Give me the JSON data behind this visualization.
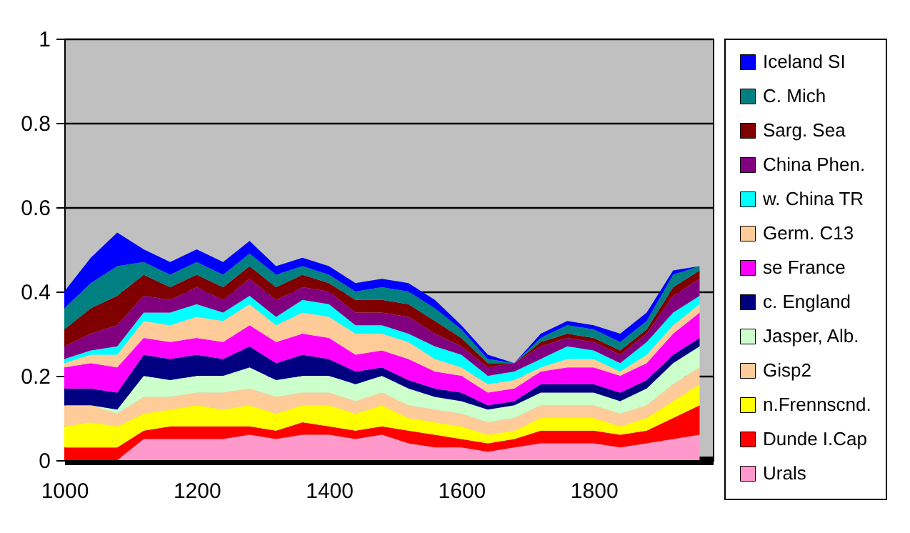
{
  "chart_data": {
    "type": "area",
    "stacked": true,
    "grid": "y",
    "legend": "right",
    "x": [
      1000,
      1040,
      1080,
      1120,
      1160,
      1200,
      1240,
      1280,
      1320,
      1360,
      1400,
      1440,
      1480,
      1520,
      1560,
      1600,
      1640,
      1680,
      1720,
      1760,
      1800,
      1840,
      1880,
      1920,
      1960
    ],
    "xlim": [
      1000,
      1980
    ],
    "xticks": [
      1000,
      1200,
      1400,
      1600,
      1800
    ],
    "ylim": [
      0,
      1
    ],
    "yticks": [
      0,
      0.2,
      0.4,
      0.6,
      0.8,
      1
    ],
    "series": [
      {
        "name": "Urals",
        "color": "#ff99cc",
        "values": [
          0,
          0,
          0,
          0.05,
          0.05,
          0.05,
          0.05,
          0.06,
          0.05,
          0.06,
          0.06,
          0.05,
          0.06,
          0.04,
          0.03,
          0.03,
          0.02,
          0.03,
          0.04,
          0.04,
          0.04,
          0.03,
          0.04,
          0.05,
          0.06
        ]
      },
      {
        "name": "Dunde I.Cap",
        "color": "#ff0000",
        "values": [
          0.03,
          0.03,
          0.03,
          0.02,
          0.03,
          0.03,
          0.03,
          0.02,
          0.02,
          0.03,
          0.02,
          0.02,
          0.02,
          0.03,
          0.03,
          0.02,
          0.02,
          0.02,
          0.03,
          0.03,
          0.03,
          0.03,
          0.03,
          0.05,
          0.07
        ]
      },
      {
        "name": "n.Frennscnd.",
        "color": "#ffff00",
        "values": [
          0.05,
          0.06,
          0.05,
          0.04,
          0.04,
          0.05,
          0.04,
          0.05,
          0.04,
          0.04,
          0.05,
          0.04,
          0.05,
          0.03,
          0.03,
          0.03,
          0.02,
          0.02,
          0.03,
          0.03,
          0.03,
          0.02,
          0.03,
          0.04,
          0.05
        ]
      },
      {
        "name": "Gisp2",
        "color": "#ffcc99",
        "values": [
          0.05,
          0.04,
          0.03,
          0.04,
          0.03,
          0.03,
          0.04,
          0.04,
          0.04,
          0.03,
          0.03,
          0.03,
          0.03,
          0.03,
          0.03,
          0.03,
          0.03,
          0.03,
          0.03,
          0.03,
          0.03,
          0.03,
          0.03,
          0.04,
          0.04
        ]
      },
      {
        "name": "Jasper, Alb.",
        "color": "#ccffcc",
        "values": [
          0,
          0,
          0.01,
          0.05,
          0.04,
          0.04,
          0.04,
          0.05,
          0.04,
          0.04,
          0.04,
          0.04,
          0.04,
          0.04,
          0.03,
          0.03,
          0.03,
          0.03,
          0.03,
          0.03,
          0.03,
          0.03,
          0.04,
          0.05,
          0.05
        ]
      },
      {
        "name": "c. England",
        "color": "#000080",
        "values": [
          0.04,
          0.04,
          0.04,
          0.05,
          0.05,
          0.05,
          0.04,
          0.05,
          0.04,
          0.05,
          0.04,
          0.03,
          0.02,
          0.02,
          0.02,
          0.02,
          0.01,
          0.01,
          0.02,
          0.02,
          0.02,
          0.02,
          0.02,
          0.02,
          0.02
        ]
      },
      {
        "name": "se France",
        "color": "#ff00ff",
        "values": [
          0.05,
          0.06,
          0.06,
          0.04,
          0.04,
          0.04,
          0.04,
          0.05,
          0.05,
          0.05,
          0.05,
          0.04,
          0.04,
          0.05,
          0.04,
          0.04,
          0.03,
          0.03,
          0.03,
          0.04,
          0.04,
          0.04,
          0.04,
          0.05,
          0.06
        ]
      },
      {
        "name": "Germ. C13",
        "color": "#ffcc99",
        "values": [
          0.01,
          0.02,
          0.03,
          0.04,
          0.04,
          0.05,
          0.05,
          0.05,
          0.04,
          0.05,
          0.05,
          0.05,
          0.04,
          0.04,
          0.03,
          0.02,
          0.02,
          0.02,
          0.01,
          0.02,
          0.02,
          0.01,
          0.02,
          0.02,
          0.02
        ]
      },
      {
        "name": "w. China TR",
        "color": "#00ffff",
        "values": [
          0.01,
          0.01,
          0.02,
          0.02,
          0.03,
          0.03,
          0.02,
          0.02,
          0.02,
          0.03,
          0.03,
          0.02,
          0.02,
          0.02,
          0.03,
          0.03,
          0.02,
          0.02,
          0.02,
          0.03,
          0.02,
          0.02,
          0.03,
          0.03,
          0.02
        ]
      },
      {
        "name": "China Phen.",
        "color": "#800080",
        "values": [
          0.03,
          0.04,
          0.05,
          0.04,
          0.03,
          0.04,
          0.03,
          0.04,
          0.04,
          0.03,
          0.03,
          0.03,
          0.03,
          0.04,
          0.03,
          0.02,
          0.02,
          0.02,
          0.03,
          0.02,
          0.02,
          0.02,
          0.02,
          0.04,
          0.04
        ]
      },
      {
        "name": "Sarg. Sea",
        "color": "#800000",
        "values": [
          0.04,
          0.06,
          0.07,
          0.05,
          0.03,
          0.03,
          0.03,
          0.03,
          0.03,
          0.03,
          0.02,
          0.03,
          0.03,
          0.03,
          0.03,
          0.02,
          0.01,
          0,
          0.01,
          0.01,
          0.01,
          0.01,
          0.01,
          0.02,
          0.02
        ]
      },
      {
        "name": "C. Mich",
        "color": "#008080",
        "values": [
          0.05,
          0.06,
          0.07,
          0.03,
          0.03,
          0.03,
          0.03,
          0.03,
          0.03,
          0.02,
          0.02,
          0.02,
          0.03,
          0.03,
          0.03,
          0.02,
          0.01,
          0,
          0.01,
          0.02,
          0.02,
          0.02,
          0.02,
          0.03,
          0.01
        ]
      },
      {
        "name": "Iceland SI",
        "color": "#0000ff",
        "values": [
          0.04,
          0.06,
          0.08,
          0.03,
          0.03,
          0.03,
          0.03,
          0.03,
          0.02,
          0.02,
          0.02,
          0.02,
          0.02,
          0.02,
          0.02,
          0.01,
          0.01,
          0,
          0.01,
          0.01,
          0.01,
          0.02,
          0.02,
          0.01,
          0
        ]
      }
    ]
  }
}
